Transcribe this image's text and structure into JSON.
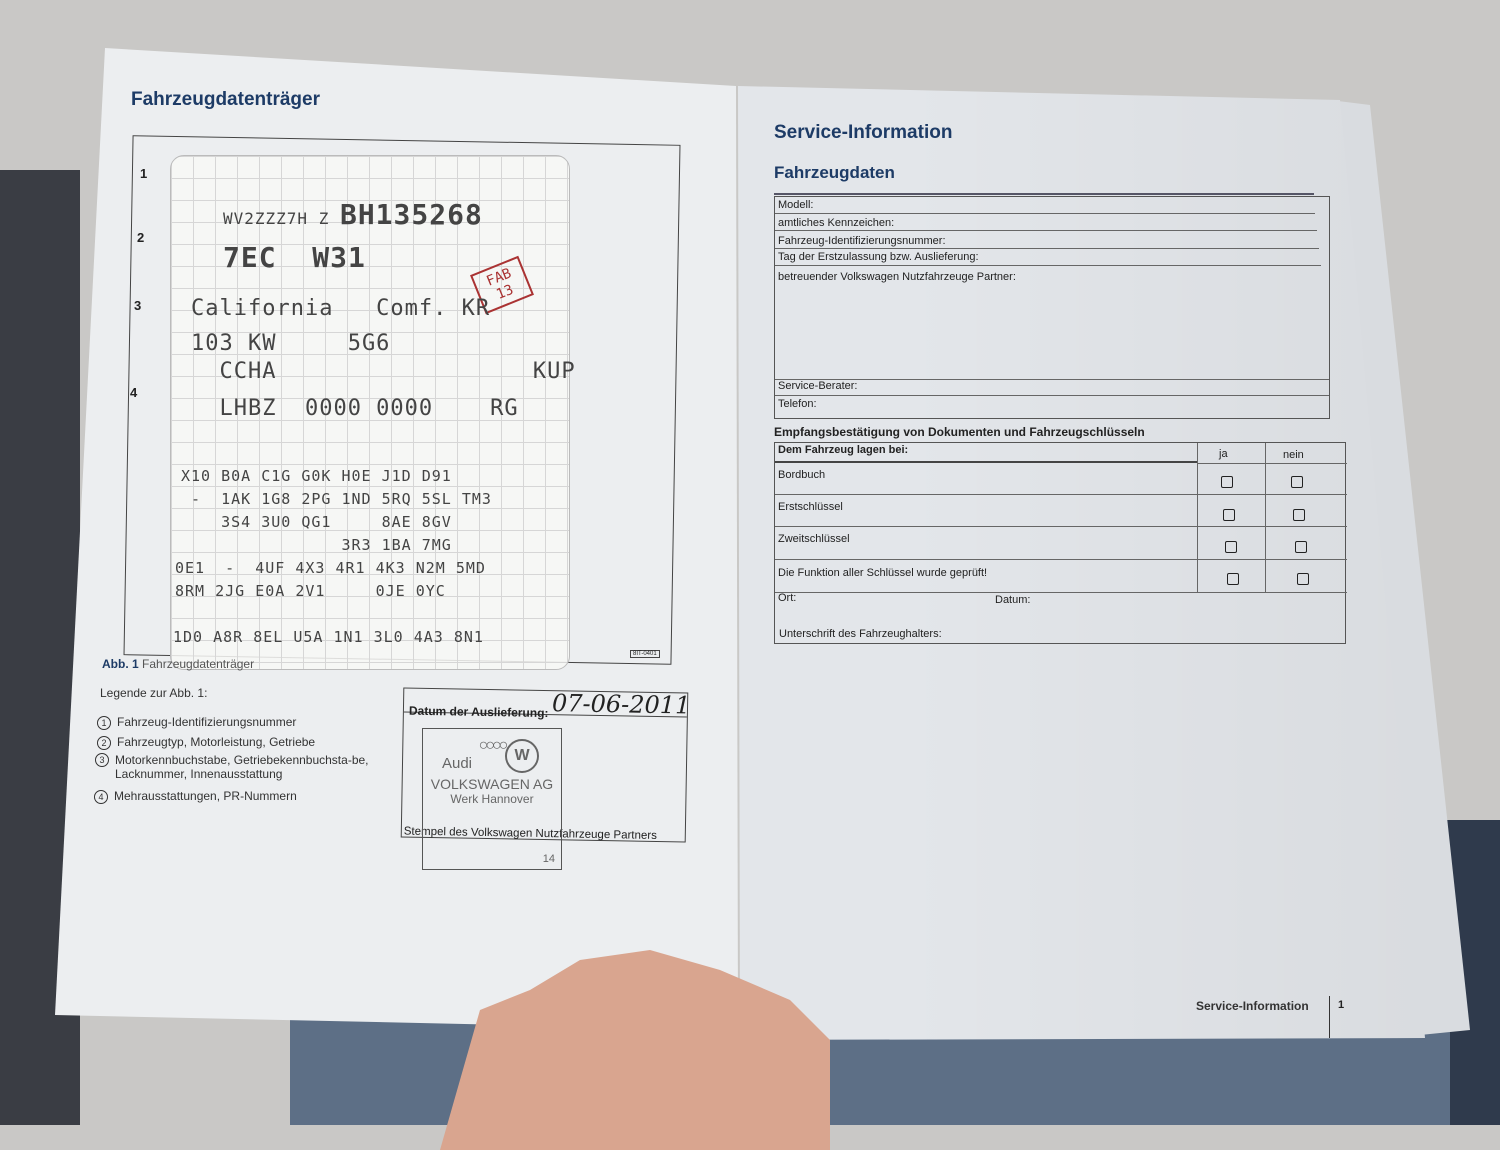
{
  "left_page": {
    "title": "Fahrzeugdatenträger",
    "row_numbers": [
      "1",
      "2",
      "3",
      "4"
    ],
    "card": {
      "vin_prefix": "WV2ZZZ7H Z",
      "vin_serial": "BH135268",
      "type_code": "7EC  W31",
      "fab_stamp": "FAB 13",
      "model": "California   Comf. KR",
      "power": "103 KW     5G6",
      "engine": "  CCHA                  KUP",
      "paint": "  LHBZ  0000 0000    RG",
      "pr_rows": [
        "X10 B0A C1G G0K H0E J1D D91",
        " -  1AK 1G8 2PG 1ND 5RQ 5SL TM3",
        "    3S4 3U0 QG1     8AE 8GV",
        "                3R3 1BA 7MG",
        "0E1  -  4UF 4X3 4R1 4K3 N2M 5MD",
        "8RM 2JG E0A 2V1     0JE 0YC",
        "",
        "1D0 A8R 8EL U5A 1N1 3L0 4A3 8N1"
      ]
    },
    "figure_code": "8IT-0401",
    "caption_label": "Abb. 1",
    "caption_text": "Fahrzeugdatenträger",
    "legend_title": "Legende zur Abb. 1:",
    "legend": [
      {
        "num": "1",
        "text": "Fahrzeug-Identifizierungsnummer"
      },
      {
        "num": "2",
        "text": "Fahrzeugtyp, Motorleistung, Getriebe"
      },
      {
        "num": "3",
        "text": "Motorkennbuchstabe, Getriebekennbuchsta-be, Lacknummer, Innenausstattung"
      },
      {
        "num": "4",
        "text": "Mehrausstattungen, PR-Nummern"
      }
    ],
    "delivery_label": "Datum der Auslieferung:",
    "delivery_date": "07-06-2011",
    "stamp": {
      "audi": "Audi",
      "company": "VOLKSWAGEN AG",
      "plant": "Werk Hannover",
      "number": "14"
    },
    "stamp_caption": "Stempel des Volkswagen Nutzfahrzeuge Partners"
  },
  "right_page": {
    "title": "Service-Information",
    "subtitle": "Fahrzeugdaten",
    "fields": [
      "Modell:",
      "amtliches Kennzeichen:",
      "Fahrzeug-Identifizierungsnummer:",
      "Tag der Erstzulassung bzw. Auslieferung:",
      "betreuender Volkswagen Nutzfahrzeuge Partner:",
      "Service-Berater:",
      "Telefon:"
    ],
    "receipt_title": "Empfangsbestätigung von Dokumenten und Fahrzeugschlüsseln",
    "receipt_header": "Dem Fahrzeug lagen bei:",
    "col_yes": "ja",
    "col_no": "nein",
    "items": [
      "Bordbuch",
      "Erstschlüssel",
      "Zweitschlüssel",
      "Die Funktion aller Schlüssel wurde geprüft!"
    ],
    "place_label": "Ort:",
    "date_label": "Datum:",
    "signature_label": "Unterschrift des Fahrzeughalters:",
    "footer_section": "Service-Information",
    "page_number": "1"
  }
}
